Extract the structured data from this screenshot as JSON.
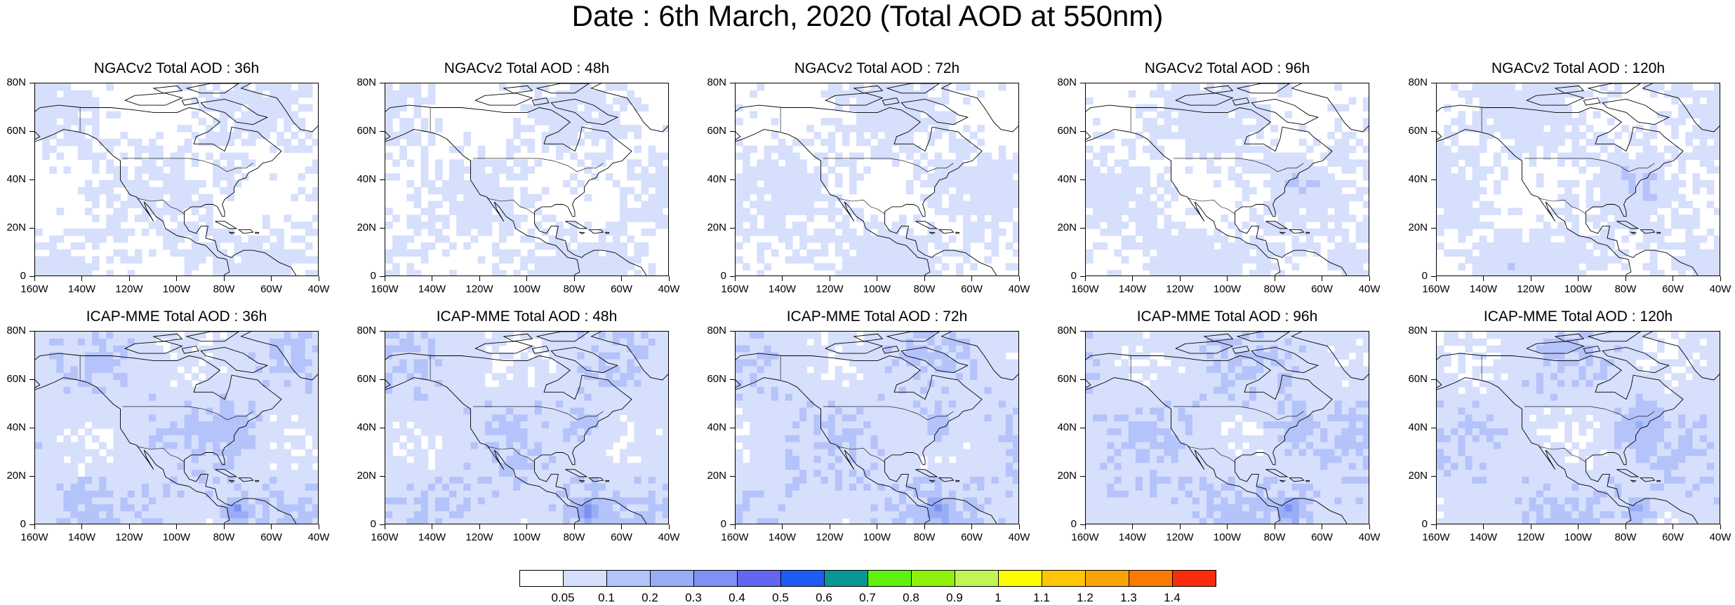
{
  "title": "Date : 6th March, 2020 (Total AOD at 550nm)",
  "lat_labels": [
    "80N",
    "60N",
    "40N",
    "20N",
    "0"
  ],
  "lon_labels": [
    "160W",
    "140W",
    "120W",
    "100W",
    "80W",
    "60W",
    "40W"
  ],
  "panels": [
    {
      "title": "NGACv2 Total AOD : 36h",
      "model": "NGACv2",
      "lead": "36h",
      "intensity": 0.35
    },
    {
      "title": "NGACv2 Total AOD : 48h",
      "model": "NGACv2",
      "lead": "48h",
      "intensity": 0.35
    },
    {
      "title": "NGACv2 Total AOD : 72h",
      "model": "NGACv2",
      "lead": "72h",
      "intensity": 0.4
    },
    {
      "title": "NGACv2 Total AOD : 96h",
      "model": "NGACv2",
      "lead": "96h",
      "intensity": 0.42
    },
    {
      "title": "NGACv2 Total AOD : 120h",
      "model": "NGACv2",
      "lead": "120h",
      "intensity": 0.45
    },
    {
      "title": "ICAP-MME Total AOD : 36h",
      "model": "ICAP-MME",
      "lead": "36h",
      "intensity": 0.8
    },
    {
      "title": "ICAP-MME Total AOD : 48h",
      "model": "ICAP-MME",
      "lead": "48h",
      "intensity": 0.8
    },
    {
      "title": "ICAP-MME Total AOD : 72h",
      "model": "ICAP-MME",
      "lead": "72h",
      "intensity": 0.82
    },
    {
      "title": "ICAP-MME Total AOD : 96h",
      "model": "ICAP-MME",
      "lead": "96h",
      "intensity": 0.85
    },
    {
      "title": "ICAP-MME Total AOD : 120h",
      "model": "ICAP-MME",
      "lead": "120h",
      "intensity": 0.78
    }
  ],
  "colorbar": {
    "colors": [
      "#ffffff",
      "#d6dffc",
      "#b4c3fa",
      "#97adf7",
      "#7e92f3",
      "#6366ee",
      "#1d5cf5",
      "#0b9597",
      "#5ef20e",
      "#8ef10b",
      "#c2f45a",
      "#fdfc04",
      "#fec604",
      "#fca403",
      "#fb7a02",
      "#fa2c0b"
    ],
    "labels": [
      "0.05",
      "0.1",
      "0.2",
      "0.3",
      "0.4",
      "0.5",
      "0.6",
      "0.7",
      "0.8",
      "0.9",
      "1",
      "1.1",
      "1.2",
      "1.3",
      "1.4"
    ]
  },
  "map_extent": {
    "lon_range": [
      -160,
      -40
    ],
    "lat_range": [
      0,
      80
    ]
  }
}
